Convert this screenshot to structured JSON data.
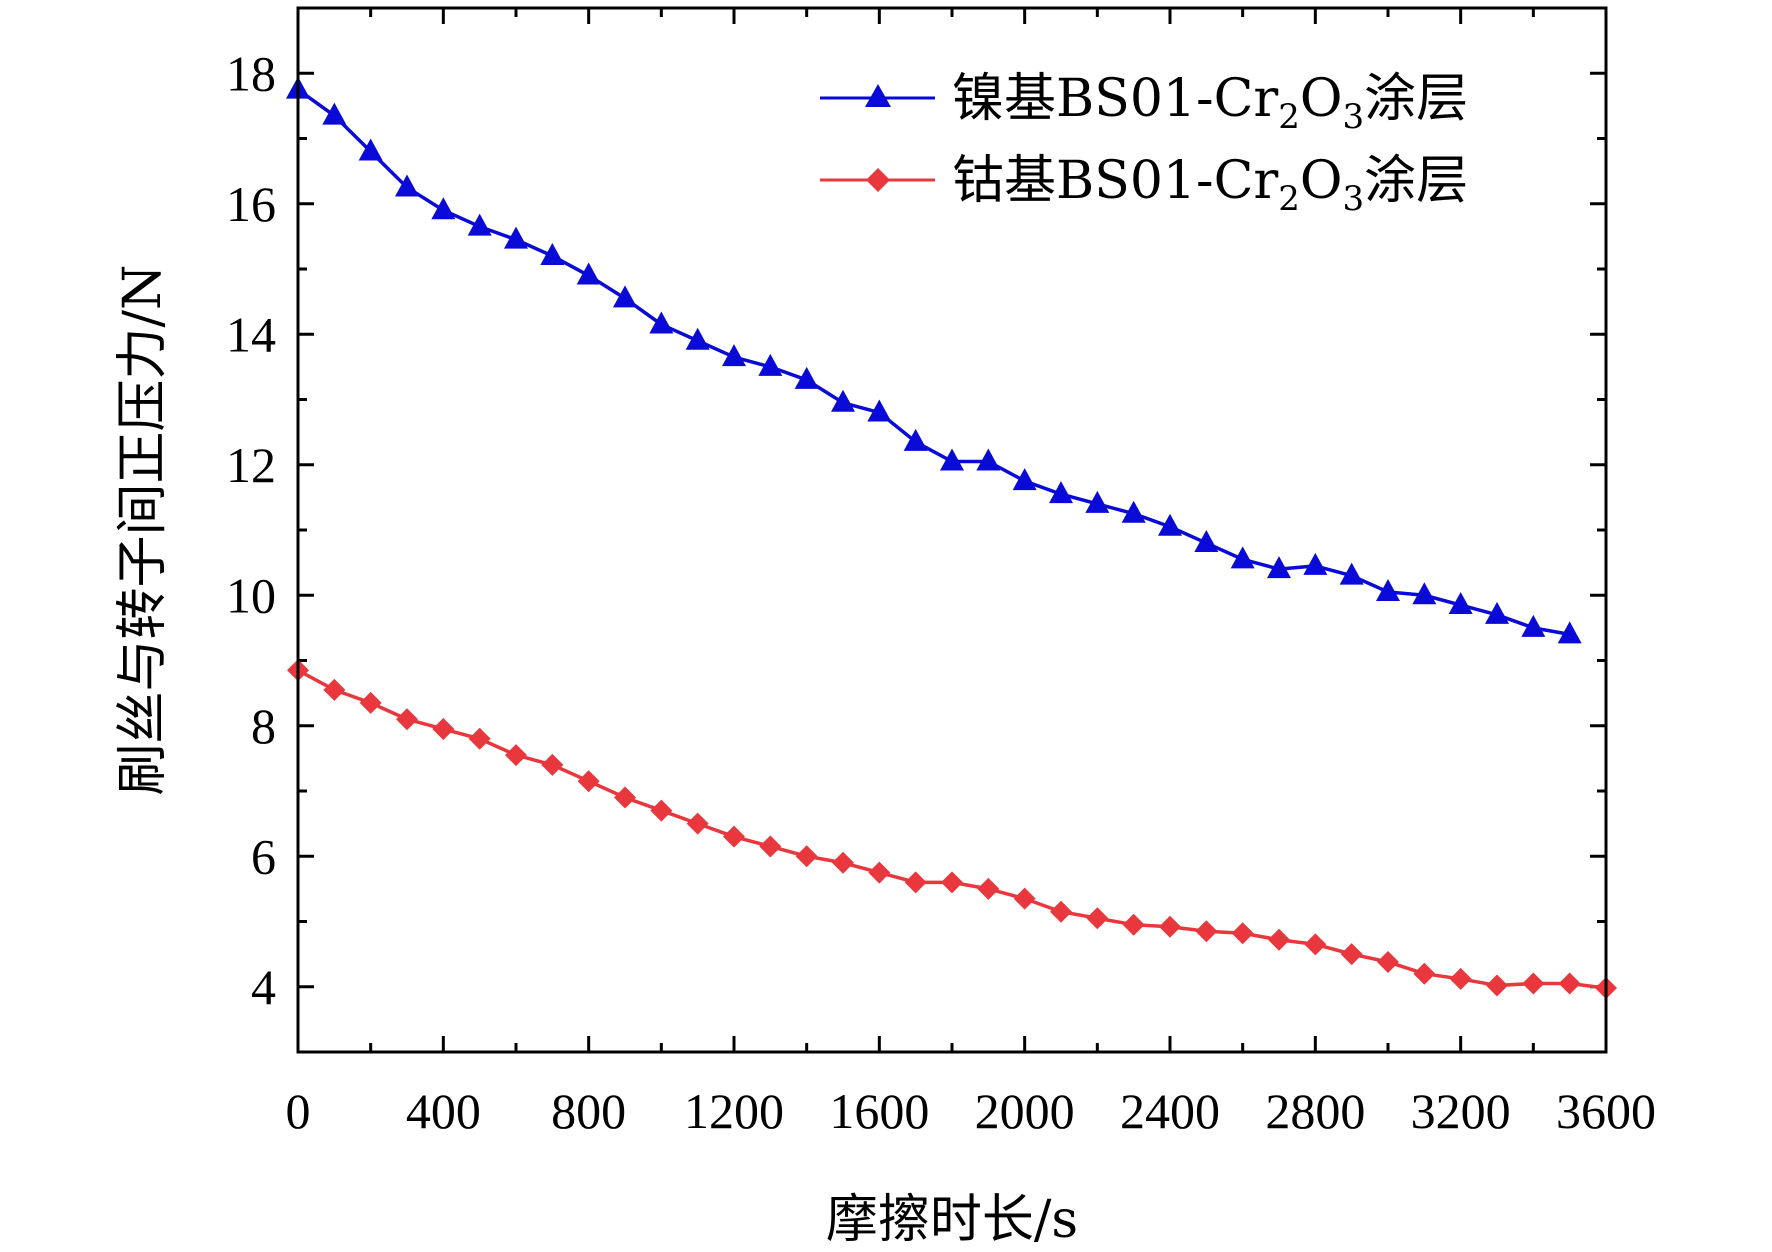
{
  "chart_data": {
    "type": "line",
    "xlabel": "摩擦时长/s",
    "ylabel": "刷丝与转子间正压力/N",
    "xlim": [
      0,
      3600
    ],
    "ylim": [
      3,
      19
    ],
    "xticks": [
      0,
      400,
      800,
      1200,
      1600,
      2000,
      2400,
      2800,
      3200,
      3600
    ],
    "yticks": [
      4,
      6,
      8,
      10,
      12,
      14,
      16,
      18
    ],
    "grid": false,
    "legend_position": "top-right",
    "x": [
      0,
      100,
      200,
      300,
      400,
      500,
      600,
      700,
      800,
      900,
      1000,
      1100,
      1200,
      1300,
      1400,
      1500,
      1600,
      1700,
      1800,
      1900,
      2000,
      2100,
      2200,
      2300,
      2400,
      2500,
      2600,
      2700,
      2800,
      2900,
      3000,
      3100,
      3200,
      3300,
      3400,
      3500
    ],
    "series": [
      {
        "name_parts": {
          "prefix": "镍基BS01-Cr",
          "sub1": "2",
          "mid": "O",
          "sub2": "3",
          "suffix": "涂层"
        },
        "color": "#0a0ad8",
        "marker": "triangle",
        "values": [
          17.75,
          17.35,
          16.8,
          16.25,
          15.9,
          15.65,
          15.45,
          15.2,
          14.9,
          14.55,
          14.15,
          13.9,
          13.65,
          13.5,
          13.3,
          12.95,
          12.8,
          12.35,
          12.05,
          12.05,
          11.75,
          11.55,
          11.4,
          11.25,
          11.05,
          10.8,
          10.55,
          10.4,
          10.45,
          10.3,
          10.05,
          10.0,
          9.85,
          9.7,
          9.5,
          9.4
        ]
      },
      {
        "name_parts": {
          "prefix": "钴基BS01-Cr",
          "sub1": "2",
          "mid": "O",
          "sub2": "3",
          "suffix": "涂层"
        },
        "color": "#e8383d",
        "marker": "diamond",
        "x": [
          0,
          100,
          200,
          300,
          400,
          500,
          600,
          700,
          800,
          900,
          1000,
          1100,
          1200,
          1300,
          1400,
          1500,
          1600,
          1700,
          1800,
          1900,
          2000,
          2100,
          2200,
          2300,
          2400,
          2500,
          2600,
          2700,
          2800,
          2900,
          3000,
          3100,
          3200,
          3300,
          3400,
          3500,
          3600
        ],
        "values": [
          8.85,
          8.55,
          8.35,
          8.1,
          7.95,
          7.8,
          7.55,
          7.4,
          7.15,
          6.9,
          6.7,
          6.5,
          6.3,
          6.15,
          6.0,
          5.9,
          5.75,
          5.6,
          5.6,
          5.5,
          5.35,
          5.15,
          5.05,
          4.95,
          4.92,
          4.85,
          4.82,
          4.72,
          4.65,
          4.5,
          4.38,
          4.2,
          4.12,
          4.02,
          4.05,
          4.05,
          3.98
        ]
      }
    ]
  }
}
